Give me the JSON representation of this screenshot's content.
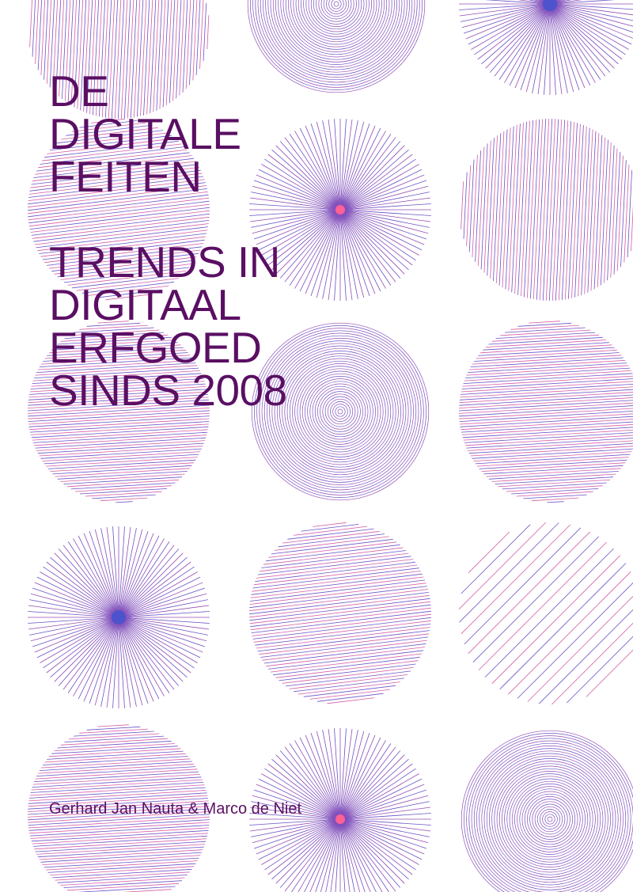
{
  "cover": {
    "title_lines": [
      "DE",
      "DIGITALE",
      "FEITEN"
    ],
    "subtitle_lines": [
      "TRENDS IN",
      "DIGITAAL",
      "ERFGOED",
      "SINDS 2008"
    ],
    "authors": "Gerhard Jan Nauta & Marco de Niet"
  },
  "colors": {
    "text": "#5a0f63",
    "line_blue": "#5b3fc0",
    "line_pink": "#d04a9a",
    "line_purple": "#8a3aa8",
    "dot_pink": "#ff4f8a",
    "dot_blue": "#3a40c8"
  },
  "circles": [
    {
      "kind": "vertical"
    },
    {
      "kind": "concentric"
    },
    {
      "kind": "radial",
      "dot": "blue"
    },
    {
      "kind": "diagonal"
    },
    {
      "kind": "radial",
      "dot": "pink"
    },
    {
      "kind": "vertical"
    },
    {
      "kind": "horizontal"
    },
    {
      "kind": "concentric"
    },
    {
      "kind": "horizontal"
    },
    {
      "kind": "radial",
      "dot": "blue"
    },
    {
      "kind": "diagonal"
    },
    {
      "kind": "diagonal"
    },
    {
      "kind": "horizontal"
    },
    {
      "kind": "radial",
      "dot": "pink"
    },
    {
      "kind": "concentric"
    }
  ]
}
